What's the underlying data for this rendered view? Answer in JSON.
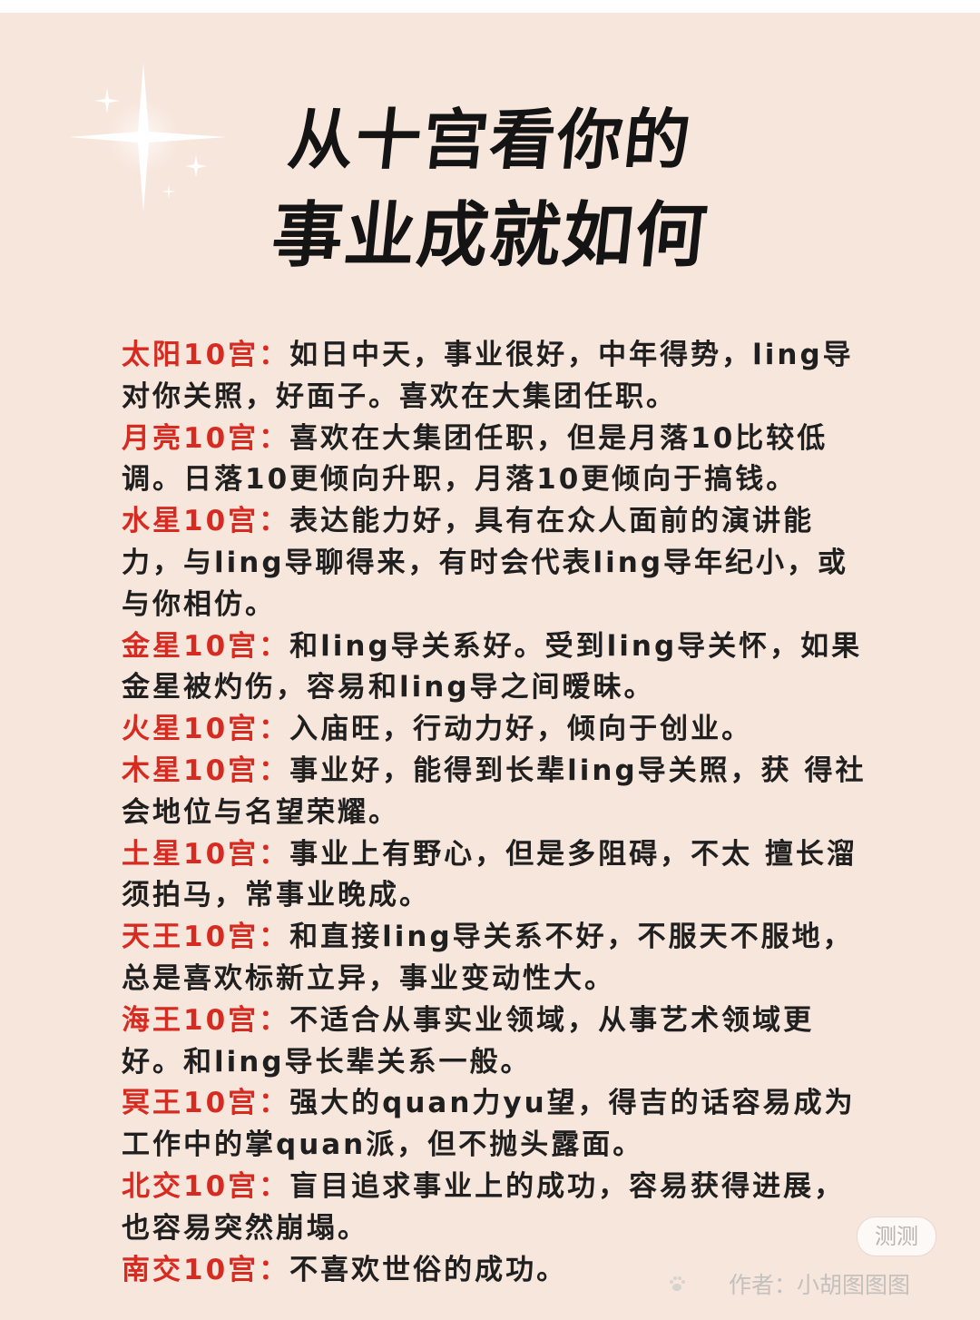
{
  "header": {
    "title_line1": "从十宫看你的",
    "title_line2": "事业成就如何"
  },
  "entries": [
    {
      "label": "太阳10宫：",
      "text": "如日中天，事业很好，中年得势，ling导对你关照，好面子。喜欢在大集团任职。"
    },
    {
      "label": "月亮10宫：",
      "text": "喜欢在大集团任职，但是月落10比较低调。日落10更倾向升职，月落10更倾向于搞钱。"
    },
    {
      "label": "水星10宫：",
      "text": "表达能力好，具有在众人面前的演讲能力，与ling导聊得来，有时会代表ling导年纪小，或与你相仿。"
    },
    {
      "label": "金星10宫：",
      "text": "和ling导关系好。受到ling导关怀，如果金星被灼伤，容易和ling导之间暧昧。"
    },
    {
      "label": "火星10宫：",
      "text": "入庙旺，行动力好，倾向于创业。"
    },
    {
      "label": "木星10宫：",
      "text": "事业好，能得到长辈ling导关照，获 得社会地位与名望荣耀。"
    },
    {
      "label": "土星10宫：",
      "text": "事业上有野心，但是多阻碍，不太 擅长溜须拍马，常事业晚成。"
    },
    {
      "label": "天王10宫：",
      "text": "和直接ling导关系不好，不服天不服地，总是喜欢标新立异，事业变动性大。"
    },
    {
      "label": "海王10宫：",
      "text": "不适合从事实业领域，从事艺术领域更好。和ling导长辈关系一般。"
    },
    {
      "label": "冥王10宫：",
      "text": "强大的quan力yu望，得吉的话容易成为工作中的掌quan派，但不抛头露面。"
    },
    {
      "label": "北交10宫：",
      "text": "盲目追求事业上的成功，容易获得进展，也容易突然崩塌。"
    },
    {
      "label": "南交10宫：",
      "text": "不喜欢世俗的成功。"
    }
  ],
  "watermark": {
    "badge": "测测",
    "author": "作者：小胡图图图"
  },
  "colors": {
    "background": "#f7e6dc",
    "label": "#d72b22",
    "text": "#1f1f1f"
  }
}
